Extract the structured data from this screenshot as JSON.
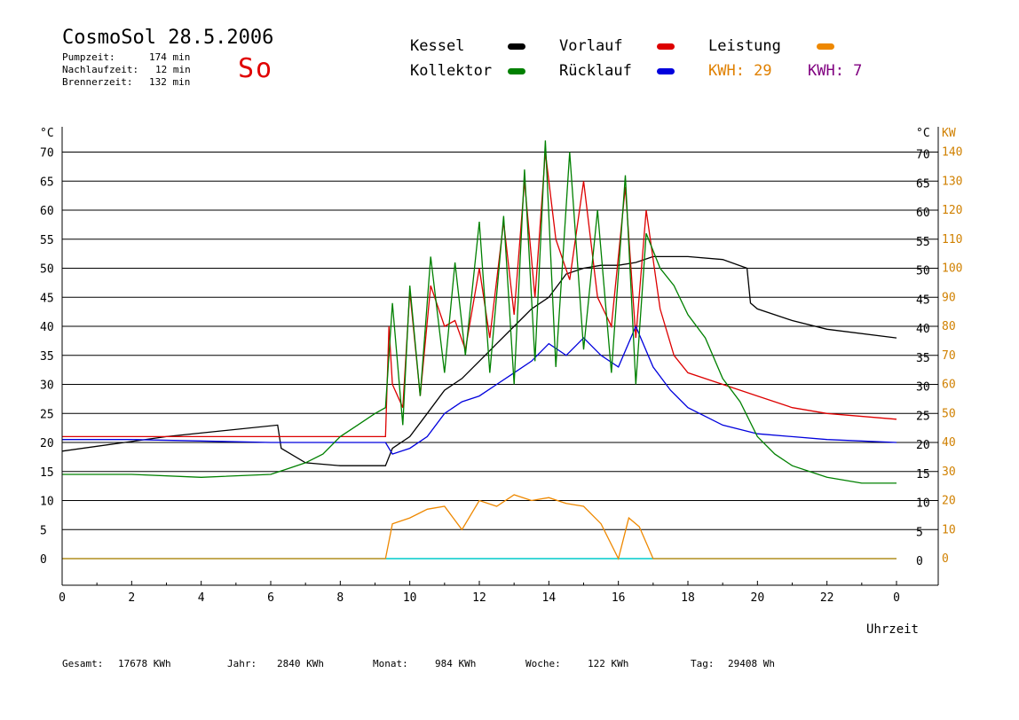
{
  "header": {
    "title": "CosmoSol 28.5.2006",
    "day": "So",
    "stats": [
      {
        "label": "Pumpzeit:",
        "value": "174 min"
      },
      {
        "label": "Nachlaufzeit:",
        "value": "12 min"
      },
      {
        "label": "Brennerzeit:",
        "value": "132 min"
      }
    ]
  },
  "legend": {
    "kessel": {
      "label": "Kessel",
      "color": "#000000"
    },
    "vorlauf": {
      "label": "Vorlauf",
      "color": "#dd0000"
    },
    "leistung": {
      "label": "Leistung",
      "color": "#ee8800"
    },
    "kollektor": {
      "label": "Kollektor",
      "color": "#008000"
    },
    "ruecklauf": {
      "label": "Rücklauf",
      "color": "#0000dd"
    },
    "kwh_solar": "KWH: 29",
    "kwh_2": "KWH: 7",
    "kwh_solar_color": "#e08000",
    "kwh_2_color": "#800080"
  },
  "footer": {
    "gesamt": {
      "label": "Gesamt:",
      "value": "17678 KWh"
    },
    "jahr": {
      "label": "Jahr:",
      "value": "2840 KWh"
    },
    "monat": {
      "label": "Monat:",
      "value": "984 KWh"
    },
    "woche": {
      "label": "Woche:",
      "value": "122 KWh"
    },
    "tag": {
      "label": "Tag:",
      "value": "29408 Wh"
    }
  },
  "chart_data": {
    "type": "line",
    "xlabel": "Uhrzeit",
    "ylabel_left": "°C",
    "ylabel_right_temp": "°C",
    "ylabel_right_power": "KW",
    "xlim": [
      0,
      24
    ],
    "ylim": [
      -3,
      75
    ],
    "x_ticks": [
      "0",
      "2",
      "4",
      "6",
      "8",
      "10",
      "12",
      "14",
      "16",
      "18",
      "20",
      "22",
      "0"
    ],
    "y_ticks_left": [
      "0",
      "5",
      "10",
      "15",
      "20",
      "25",
      "30",
      "35",
      "40",
      "45",
      "50",
      "55",
      "60",
      "65",
      "70"
    ],
    "y_ticks_right_temp": [
      "0",
      "5",
      "10",
      "15",
      "20",
      "25",
      "30",
      "35",
      "40",
      "45",
      "50",
      "55",
      "60",
      "65",
      "70"
    ],
    "y_ticks_right_power": [
      "0",
      "10",
      "20",
      "30",
      "40",
      "50",
      "60",
      "70",
      "80",
      "90",
      "100",
      "110",
      "120",
      "130",
      "140"
    ],
    "grid": true,
    "series": [
      {
        "name": "Kessel",
        "color": "#000000",
        "x": [
          0,
          3,
          6.2,
          6.3,
          7,
          8,
          9.3,
          9.5,
          10,
          10.5,
          11,
          11.5,
          12,
          12.5,
          13,
          13.5,
          14,
          14.5,
          15,
          15.5,
          16,
          16.5,
          17,
          18,
          19,
          19.7,
          19.8,
          20,
          21,
          22,
          24
        ],
        "y": [
          18.5,
          21,
          23,
          19,
          16.5,
          16,
          16,
          19,
          21,
          25,
          29,
          31,
          34,
          37,
          40,
          43,
          45,
          49,
          50,
          50.5,
          50.5,
          51,
          52,
          52,
          51.5,
          50,
          44,
          43,
          41,
          39.5,
          38
        ]
      },
      {
        "name": "Vorlauf",
        "color": "#dd0000",
        "x": [
          0,
          6,
          9.3,
          9.4,
          9.5,
          9.8,
          10,
          10.3,
          10.6,
          11,
          11.3,
          11.6,
          12,
          12.3,
          12.7,
          13,
          13.3,
          13.6,
          13.9,
          14.2,
          14.6,
          15,
          15.4,
          15.8,
          16.2,
          16.5,
          16.8,
          17.2,
          17.6,
          18,
          19,
          20,
          21,
          22,
          24
        ],
        "y": [
          21,
          21,
          21,
          40,
          30,
          26,
          46,
          28,
          47,
          40,
          41,
          36,
          50,
          38,
          58,
          42,
          65,
          45,
          70,
          55,
          48,
          65,
          45,
          40,
          64,
          38,
          60,
          43,
          35,
          32,
          30,
          28,
          26,
          25,
          24
        ]
      },
      {
        "name": "Rücklauf",
        "color": "#0000dd",
        "x": [
          0,
          2,
          6,
          9.3,
          9.5,
          10,
          10.5,
          11,
          11.5,
          12,
          12.5,
          13,
          13.5,
          14,
          14.5,
          15,
          15.5,
          16,
          16.5,
          17,
          17.5,
          18,
          19,
          20,
          22,
          24
        ],
        "y": [
          20.5,
          20.5,
          20,
          20,
          18,
          19,
          21,
          25,
          27,
          28,
          30,
          32,
          34,
          37,
          35,
          38,
          35,
          33,
          40,
          33,
          29,
          26,
          23,
          21.5,
          20.5,
          20
        ]
      },
      {
        "name": "Kollektor",
        "color": "#008000",
        "x": [
          0,
          2,
          4,
          6,
          6.5,
          7,
          7.5,
          8,
          8.5,
          9,
          9.3,
          9.5,
          9.8,
          10,
          10.3,
          10.6,
          11,
          11.3,
          11.6,
          12,
          12.3,
          12.7,
          13,
          13.3,
          13.6,
          13.9,
          14.2,
          14.6,
          15,
          15.4,
          15.8,
          16.2,
          16.5,
          16.8,
          17.2,
          17.6,
          18,
          18.5,
          19,
          19.5,
          20,
          20.5,
          21,
          21.5,
          22,
          23,
          24
        ],
        "y": [
          14.5,
          14.5,
          14,
          14.5,
          15.5,
          16.5,
          18,
          21,
          23,
          25,
          26,
          44,
          23,
          47,
          28,
          52,
          32,
          51,
          35,
          58,
          32,
          59,
          30,
          67,
          34,
          72,
          33,
          70,
          36,
          60,
          32,
          66,
          30,
          56,
          50,
          47,
          42,
          38,
          31,
          27,
          21,
          18,
          16,
          15,
          14,
          13,
          13
        ]
      },
      {
        "name": "Leistung",
        "color": "#ee8800",
        "axis": "power",
        "x": [
          0,
          9.3,
          9.5,
          10,
          10.5,
          11,
          11.5,
          12,
          12.5,
          13,
          13.5,
          14,
          14.5,
          15,
          15.5,
          16,
          16.3,
          16.6,
          17,
          24
        ],
        "y": [
          0,
          0,
          12,
          14,
          17,
          18,
          10,
          20,
          18,
          22,
          20,
          21,
          19,
          18,
          12,
          0,
          14,
          11,
          0,
          0
        ]
      }
    ]
  }
}
